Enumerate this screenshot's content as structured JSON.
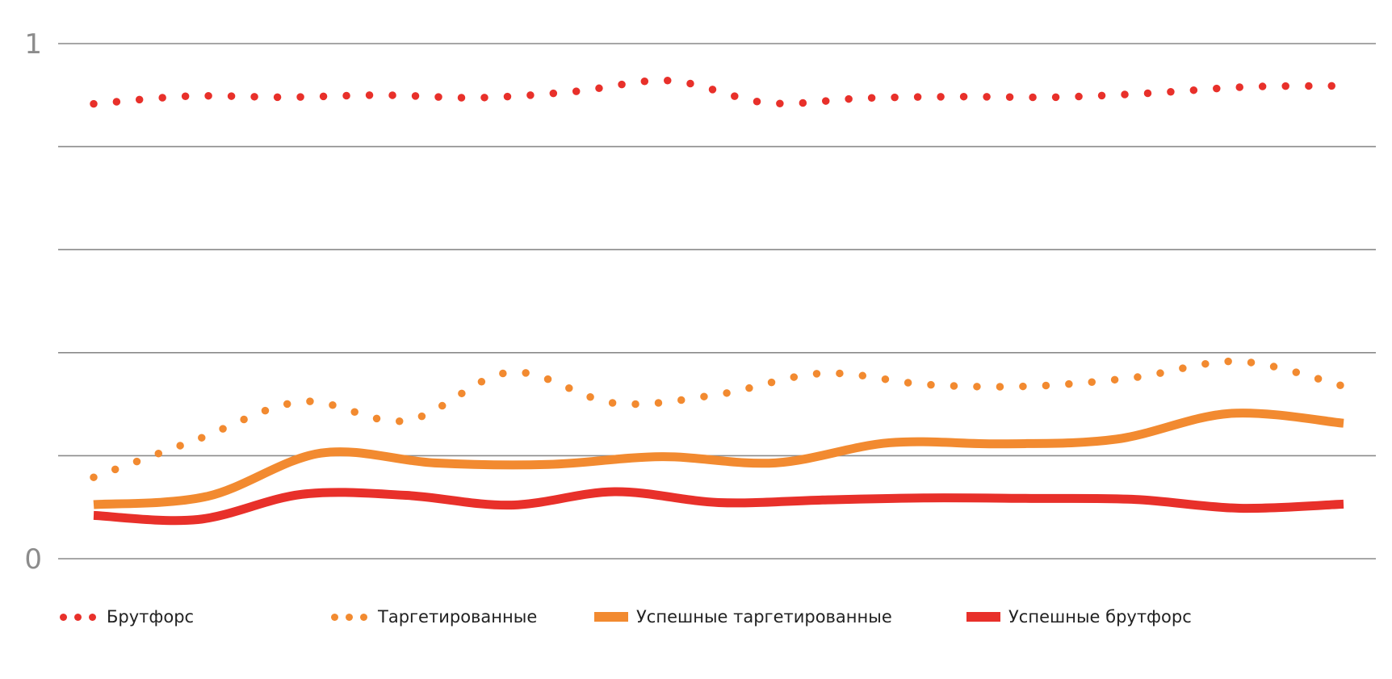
{
  "chart_data": {
    "type": "line",
    "title": "",
    "xlabel": "",
    "ylabel": "",
    "ylim": [
      0,
      1
    ],
    "yticks": [
      {
        "value": 0,
        "label": "0"
      },
      {
        "value": 1,
        "label": "1"
      }
    ],
    "gridlines": [
      0,
      0.2,
      0.4,
      0.6,
      0.8,
      1
    ],
    "grid": true,
    "legend_position": "bottom",
    "series": [
      {
        "name": "Брутфорс",
        "style": "dotted",
        "color": "#e8302a",
        "values": [
          0.883,
          0.898,
          0.896,
          0.9,
          0.895,
          0.907,
          0.928,
          0.885,
          0.894,
          0.897,
          0.896,
          0.904,
          0.916,
          0.918
        ]
      },
      {
        "name": "Таргетированные",
        "style": "dotted",
        "color": "#f28a30",
        "values": [
          0.158,
          0.232,
          0.305,
          0.268,
          0.362,
          0.302,
          0.319,
          0.36,
          0.338,
          0.335,
          0.352,
          0.383,
          0.335
        ]
      },
      {
        "name": "Успешные таргетированные",
        "style": "solid",
        "color": "#f28a30",
        "values": [
          0.105,
          0.121,
          0.205,
          0.186,
          0.183,
          0.198,
          0.186,
          0.225,
          0.223,
          0.232,
          0.282,
          0.263
        ]
      },
      {
        "name": "Успешные брутфорс",
        "style": "solid",
        "color": "#e8302a",
        "values": [
          0.084,
          0.076,
          0.125,
          0.123,
          0.104,
          0.13,
          0.109,
          0.114,
          0.118,
          0.117,
          0.115,
          0.098,
          0.106
        ]
      }
    ]
  }
}
